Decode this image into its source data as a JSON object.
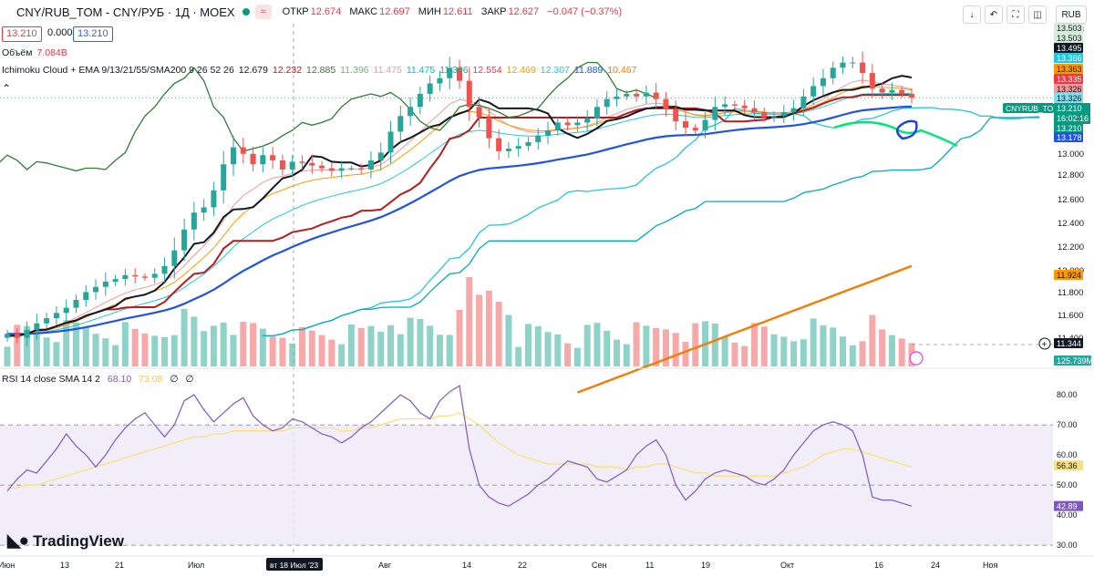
{
  "header": {
    "symbol_label": "CNY/RUB_TOM - CNY/РУБ · 1Д · MOEX",
    "badge": "≈",
    "open_label": "ОТКР",
    "open": "12.674",
    "high_label": "МАКС",
    "high": "12.697",
    "low_label": "МИН",
    "low": "12.611",
    "close_label": "ЗАКР",
    "close": "12.627",
    "change": "−0.047 (−0.37%)",
    "bid": "13.210",
    "spread": "0.000",
    "ask": "13.210"
  },
  "toolbar": {
    "currency": "RUB",
    "icons": [
      "download-icon",
      "undo-icon",
      "fullscreen-icon",
      "camera-icon"
    ]
  },
  "volume_legend": {
    "label": "Объём",
    "value": "7.084B"
  },
  "ichimoku_legend": {
    "label": "Ichimoku Cloud + EMA 9/13/21/55/SMA200 9 26 52 26",
    "values": [
      {
        "v": "12.679",
        "color": "#131722"
      },
      {
        "v": "12.232",
        "color": "#b71c1c"
      },
      {
        "v": "12.885",
        "color": "#2e7d32"
      },
      {
        "v": "11.396",
        "color": "#66bb6a"
      },
      {
        "v": "11.475",
        "color": "#ef9a9a"
      },
      {
        "v": "11.475",
        "color": "#00bcd4"
      },
      {
        "v": "11.396",
        "color": "#26a69a"
      },
      {
        "v": "12.554",
        "color": "#f23645"
      },
      {
        "v": "12.469",
        "color": "#ff9800"
      },
      {
        "v": "12.307",
        "color": "#26c6da"
      },
      {
        "v": "11.889",
        "color": "#1e53e5"
      },
      {
        "v": "10.467",
        "color": "#f57c00"
      }
    ]
  },
  "rsi_legend": {
    "label": "RSI 14 close SMA 14 2",
    "v1": "68.10",
    "v2": "73.08",
    "v3": "∅",
    "v4": "∅"
  },
  "brand": "TradingView",
  "chart_data": [
    {
      "type": "candlestick",
      "title": "CNY/RUB_TOM - CNY/РУБ · 1Д · MOEX",
      "y_ticks": [
        "13.503",
        "13.000",
        "12.800",
        "12.600",
        "12.400",
        "12.200",
        "12.000",
        "11.800",
        "11.600",
        "11.400"
      ],
      "ylim": [
        11.15,
        13.75
      ],
      "x_tick_labels": [
        "Июн",
        "13",
        "21",
        "Июл",
        "вт 18 Июл '23",
        "Авг",
        "14",
        "22",
        "Сен",
        "11",
        "19",
        "Окт",
        "16",
        "24",
        "Ноя"
      ],
      "closes": [
        11.4,
        11.37,
        11.43,
        11.48,
        11.52,
        11.56,
        11.6,
        11.66,
        11.72,
        11.76,
        11.8,
        11.82,
        11.85,
        11.84,
        11.83,
        11.86,
        11.92,
        12.04,
        12.2,
        12.33,
        12.37,
        12.5,
        12.7,
        12.83,
        12.78,
        12.7,
        12.77,
        12.73,
        12.66,
        12.72,
        12.71,
        12.69,
        12.67,
        12.65,
        12.67,
        12.67,
        12.66,
        12.73,
        12.79,
        12.95,
        13.07,
        13.14,
        13.24,
        13.32,
        13.36,
        13.44,
        13.34,
        13.14,
        13.06,
        12.9,
        12.8,
        12.82,
        12.84,
        12.87,
        12.92,
        12.96,
        13.02,
        13.0,
        13.02,
        13.05,
        13.14,
        13.2,
        13.22,
        13.24,
        13.22,
        13.25,
        13.2,
        13.12,
        13.03,
        12.98,
        12.96,
        13.04,
        13.14,
        13.16,
        13.15,
        13.13,
        13.1,
        13.06,
        13.07,
        13.1,
        13.13,
        13.22,
        13.3,
        13.36,
        13.44,
        13.48,
        13.48,
        13.4,
        13.28,
        13.25,
        13.27,
        13.24,
        13.21
      ],
      "series": [
        {
          "name": "Tenkan",
          "color": "#131722"
        },
        {
          "name": "Kijun",
          "color": "#b71c1c"
        },
        {
          "name": "Chikou",
          "color": "#2e7d32"
        },
        {
          "name": "Senkou A",
          "color": "#26c6da"
        },
        {
          "name": "EMA 55",
          "color": "#1e53e5"
        },
        {
          "name": "SMA 200",
          "color": "#f57c00"
        }
      ],
      "price_labels": [
        {
          "v": "13.503",
          "bg": "#d6ecd8",
          "fg": "#131722"
        },
        {
          "v": "13.503",
          "bg": "#d6ecd8",
          "fg": "#131722"
        },
        {
          "v": "13.495",
          "bg": "#131722",
          "fg": "#ffffff"
        },
        {
          "v": "13.366",
          "bg": "#26c6da",
          "fg": "#ffffff"
        },
        {
          "v": "13.363",
          "bg": "#ff9800",
          "fg": "#131722"
        },
        {
          "v": "13.335",
          "bg": "#f23645",
          "fg": "#ffffff"
        },
        {
          "v": "13.326",
          "bg": "#ef9a9a",
          "fg": "#131722"
        },
        {
          "v": "13.326",
          "bg": "#80deea",
          "fg": "#131722"
        },
        {
          "v": "13.210",
          "bg": "#089981",
          "fg": "#ffffff"
        },
        {
          "v": "13.178",
          "bg": "#1e53e5",
          "fg": "#ffffff"
        },
        {
          "v": "11.924",
          "bg": "#ff9800",
          "fg": "#131722"
        },
        {
          "v": "11.344",
          "bg": "#131722",
          "fg": "#ffffff"
        },
        {
          "v": "125.739M",
          "bg": "#26a69a",
          "fg": "#ffffff"
        }
      ],
      "last_price_tag": {
        "symbol": "CNYRUB_TOM",
        "price": "13.210",
        "countdown": "16:02:16"
      }
    },
    {
      "type": "line",
      "title": "RSI 14 close SMA 14 2",
      "y_ticks": [
        "80.00",
        "70.00",
        "60.00",
        "56.36",
        "50.00",
        "42.89",
        "40.00",
        "30.00"
      ],
      "ylim": [
        27,
        87
      ],
      "rsi": [
        48,
        52,
        55,
        54,
        58,
        62,
        67,
        63,
        60,
        56,
        60,
        65,
        69,
        72,
        74,
        70,
        66,
        70,
        78,
        80,
        75,
        71,
        74,
        77,
        79,
        73,
        70,
        68,
        69,
        72,
        71,
        69,
        67,
        66,
        64,
        66,
        69,
        71,
        74,
        77,
        80,
        78,
        74,
        72,
        78,
        81,
        83,
        62,
        50,
        46,
        44,
        43,
        45,
        47,
        50,
        52,
        55,
        58,
        57,
        56,
        52,
        51,
        53,
        55,
        60,
        63,
        65,
        60,
        50,
        45,
        48,
        52,
        54,
        55,
        54,
        53,
        51,
        50,
        52,
        55,
        60,
        64,
        68,
        70,
        71,
        70,
        68,
        60,
        46,
        45,
        45,
        44,
        43
      ],
      "rsi_sma": [
        49,
        49,
        50,
        50,
        51,
        52,
        53,
        54,
        55,
        56,
        57,
        58,
        59,
        60,
        61,
        62,
        63,
        64,
        65,
        66,
        66,
        67,
        67,
        68,
        68,
        68,
        68,
        68,
        68,
        69,
        69,
        69,
        69,
        69,
        68,
        68,
        69,
        69,
        70,
        71,
        72,
        72,
        72,
        72,
        73,
        73,
        74,
        72,
        70,
        67,
        64,
        62,
        60,
        59,
        58,
        57,
        57,
        57,
        57,
        57,
        56,
        56,
        56,
        55,
        56,
        56,
        57,
        57,
        56,
        55,
        54,
        54,
        53,
        53,
        53,
        53,
        53,
        53,
        53,
        54,
        55,
        56,
        58,
        60,
        61,
        62,
        62,
        61,
        60,
        59,
        58,
        57,
        56
      ],
      "upper_band": 70,
      "lower_band": 30,
      "mid_band": 50
    }
  ]
}
